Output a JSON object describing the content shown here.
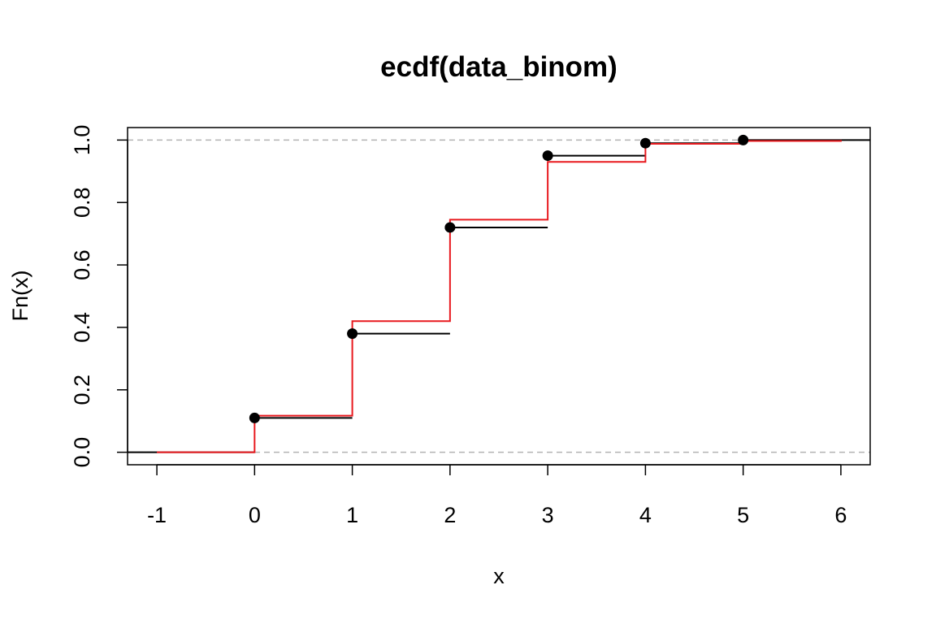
{
  "chart_data": {
    "type": "line",
    "title": "ecdf(data_binom)",
    "xlabel": "x",
    "ylabel": "Fn(x)",
    "xlim": [
      -1.3,
      6.3
    ],
    "ylim": [
      -0.04,
      1.04
    ],
    "x_ticks": [
      "-1",
      "0",
      "1",
      "2",
      "3",
      "4",
      "5",
      "6"
    ],
    "y_ticks": [
      "0.0",
      "0.2",
      "0.4",
      "0.6",
      "0.8",
      "1.0"
    ],
    "reference_lines": [
      0,
      1
    ],
    "colors": {
      "ecdf": "#000000",
      "theoretical": "#e8191e",
      "reference": "#b3b3b3"
    },
    "series": [
      {
        "style": "step-points",
        "x": [
          0,
          1,
          2,
          3,
          4,
          5
        ],
        "y": [
          0.11,
          0.38,
          0.72,
          0.95,
          0.99,
          1.0
        ]
      },
      {
        "style": "step",
        "x": [
          -1,
          0,
          1,
          2,
          3,
          4,
          5,
          6
        ],
        "y": [
          0.0,
          0.117,
          0.42,
          0.745,
          0.93,
          0.988,
          0.997,
          1.0
        ]
      }
    ]
  }
}
